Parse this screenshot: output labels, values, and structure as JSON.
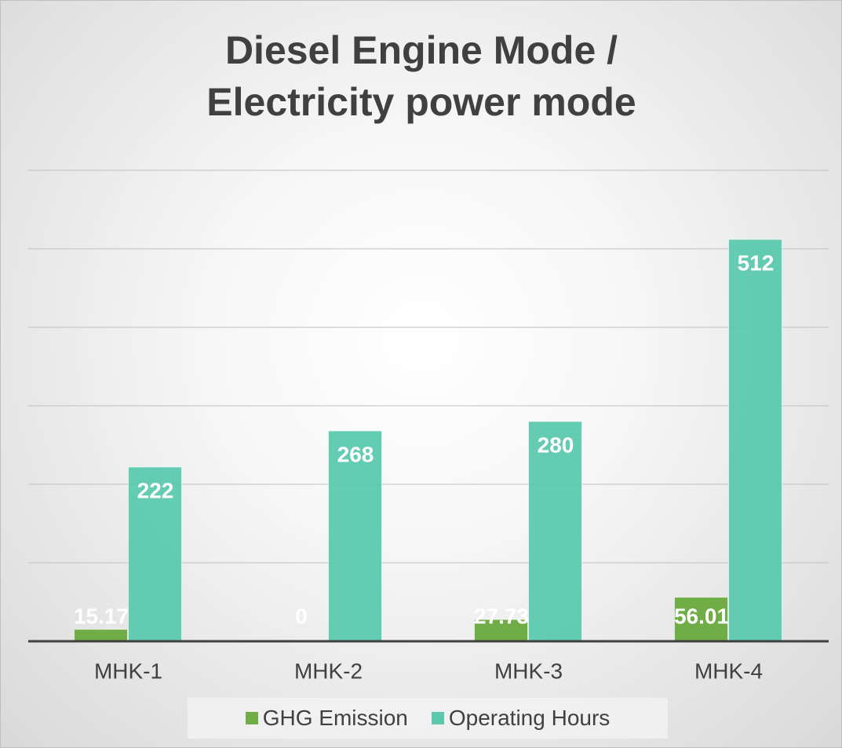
{
  "chart_data": {
    "type": "bar",
    "title": "Diesel Engine Mode / Electricity power mode",
    "categories": [
      "MHK-1",
      "MHK-2",
      "MHK-3",
      "MHK-4"
    ],
    "series": [
      {
        "name": "GHG Emission",
        "color": "#70ad47",
        "values": [
          15.17,
          0,
          27.73,
          56.01
        ]
      },
      {
        "name": "Operating Hours",
        "color": "#5cc9ae",
        "values": [
          222,
          268,
          280,
          512
        ]
      }
    ],
    "ylim": [
      0,
      600
    ],
    "yticks": [
      0,
      100,
      200,
      300,
      400,
      500,
      600
    ],
    "grid": true,
    "legend": "bottom"
  }
}
